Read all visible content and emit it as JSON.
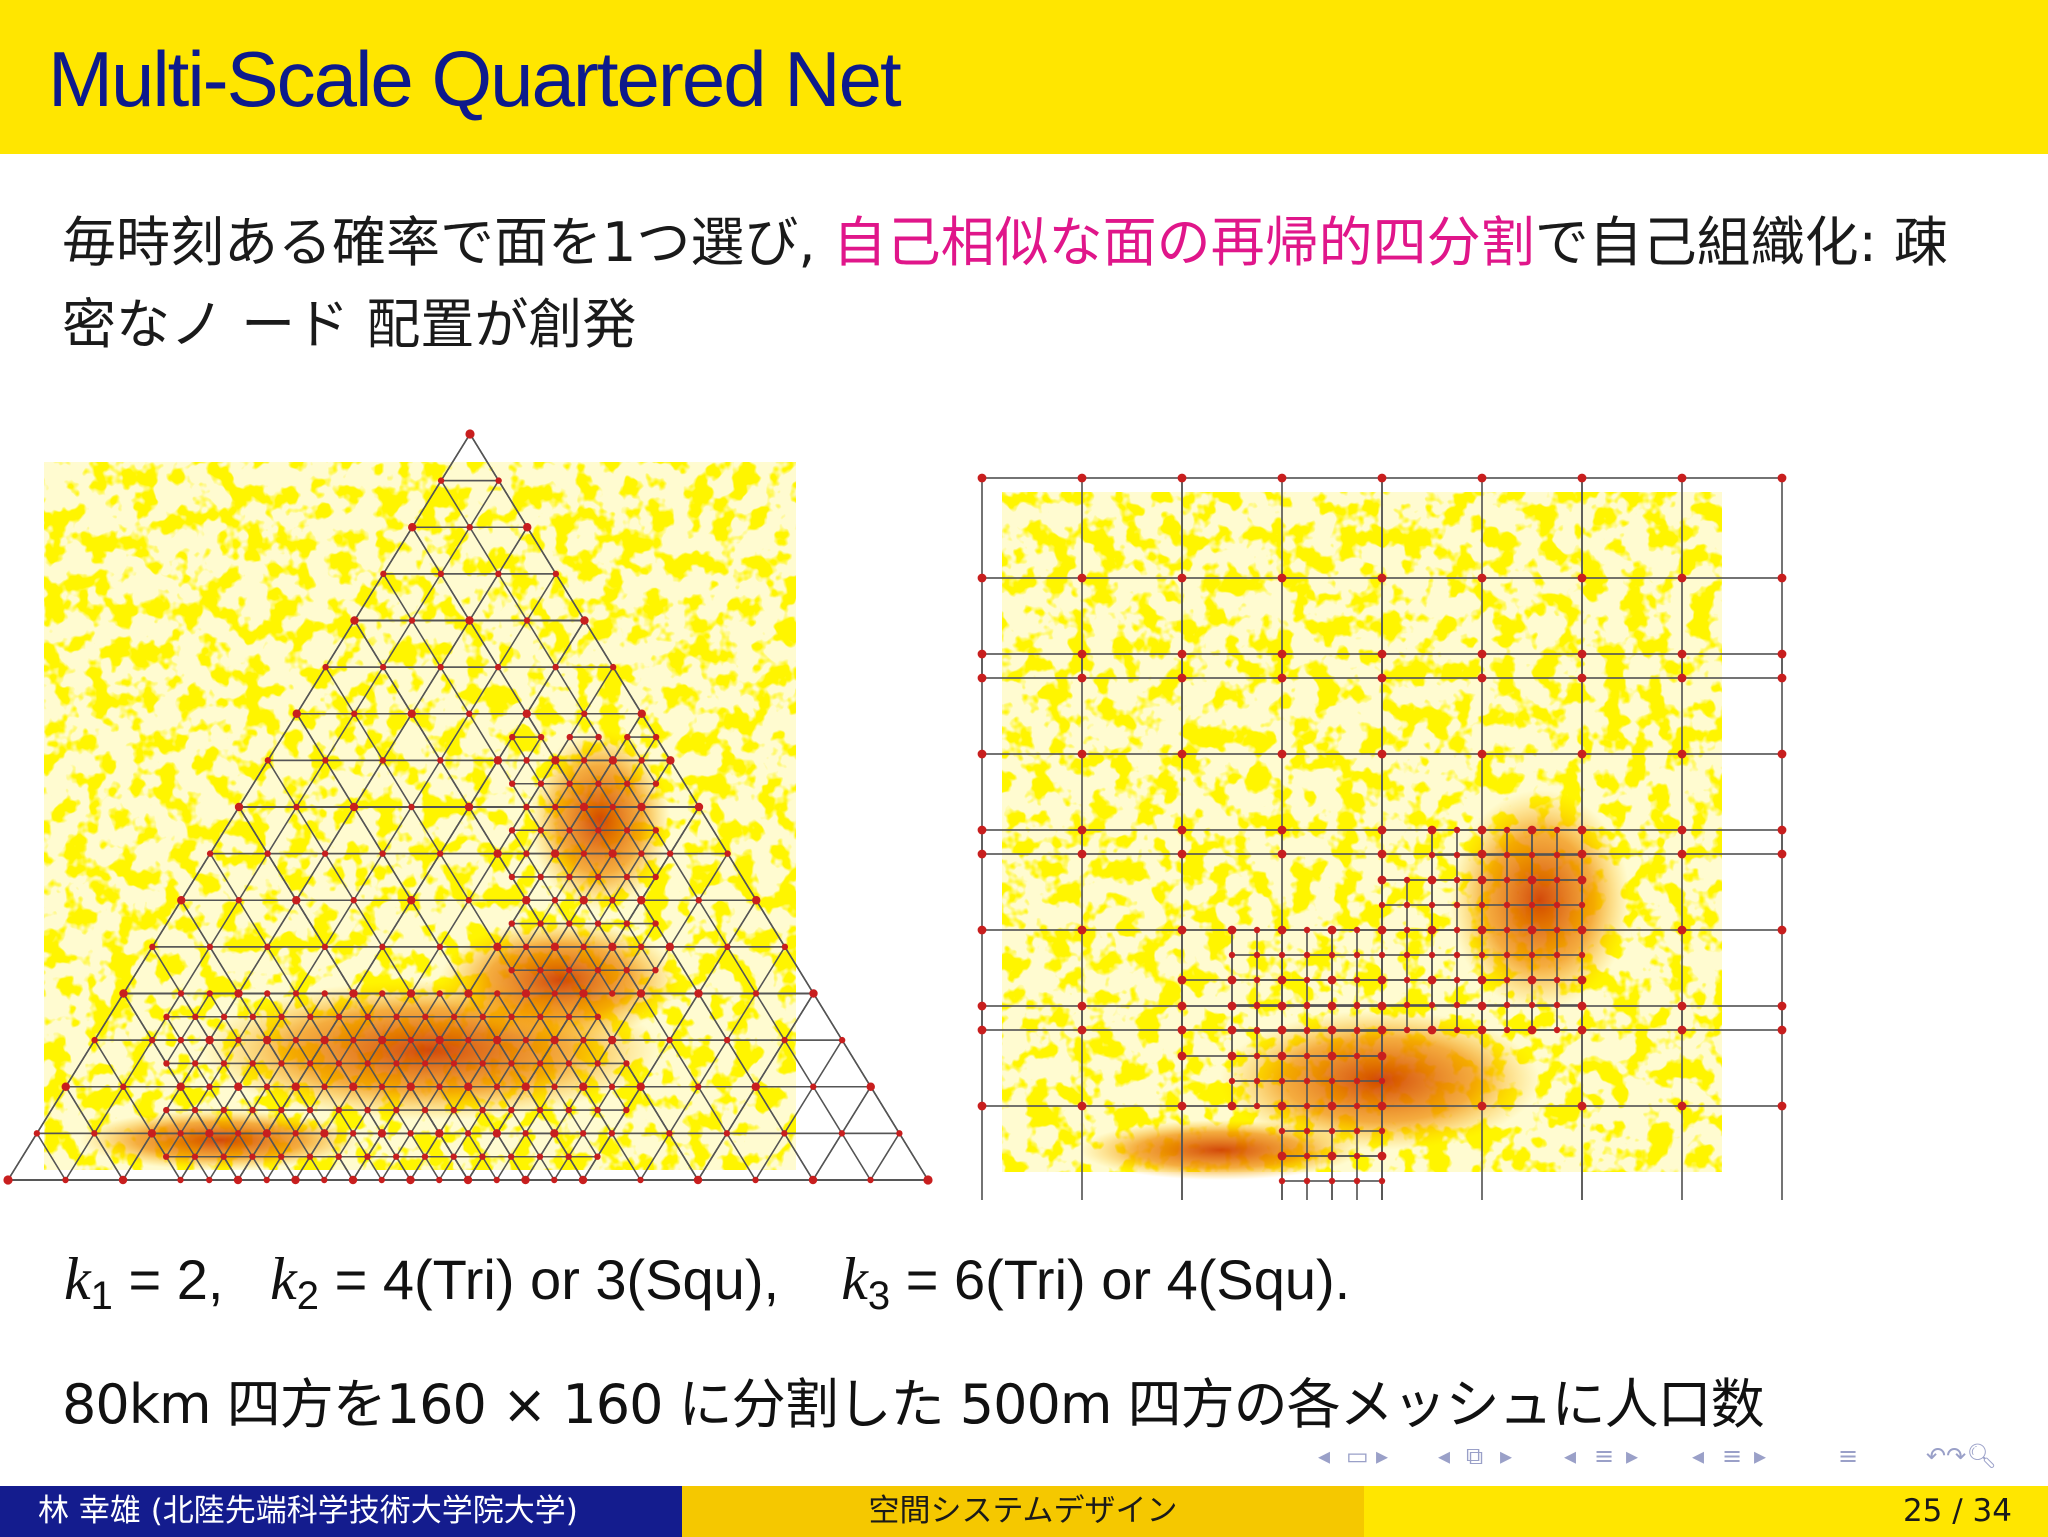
{
  "slide": {
    "title": "Multi-Scale Quartered Net",
    "intro_before": "毎時刻ある確率で面を1つ選び, ",
    "intro_highlight": "自己相似な面の再帰的四分割",
    "intro_after": "で自己組織化: 疎密なノ ード 配置が創発",
    "formula": {
      "k1_symbol": "k",
      "k1_sub": "1",
      "k1_value": "=   2,",
      "k2_symbol": "k",
      "k2_sub": "2",
      "k2_value": "=   4(Tri)  or  3(Squ),",
      "k3_symbol": "k",
      "k3_sub": "3",
      "k3_value": "= 6(Tri)  or  4(Squ)."
    },
    "caption": "80km 四方を160 × 160 に分割した 500m 四方の各メッシュに人口数"
  },
  "figures": {
    "left_type": "triangular quartered net over population density map",
    "right_type": "square quartered net over population density map"
  },
  "colors": {
    "title_bar": "#ffe600",
    "title_text": "#0d1a8c",
    "highlight": "#e0168a",
    "footer_left": "#141c8e",
    "footer_mid": "#f5c800",
    "footer_right": "#ffe600",
    "node": "#c81e1e",
    "map_light": "#ffee00",
    "map_dense": "#e07000"
  },
  "footer": {
    "author": "林  幸雄  (北陸先端科学技術大学院大学)",
    "course": "空間システムデザイン",
    "page": "25 /  34"
  },
  "nav_icons": [
    "nav-prev-frame-icon",
    "nav-frame-icon",
    "nav-next-frame-icon",
    "nav-prev-subsection-icon",
    "nav-subsection-icon",
    "nav-next-subsection-icon",
    "nav-prev-section-icon",
    "nav-section-icon",
    "nav-next-section-icon",
    "nav-outline-icon",
    "nav-search-icon"
  ]
}
